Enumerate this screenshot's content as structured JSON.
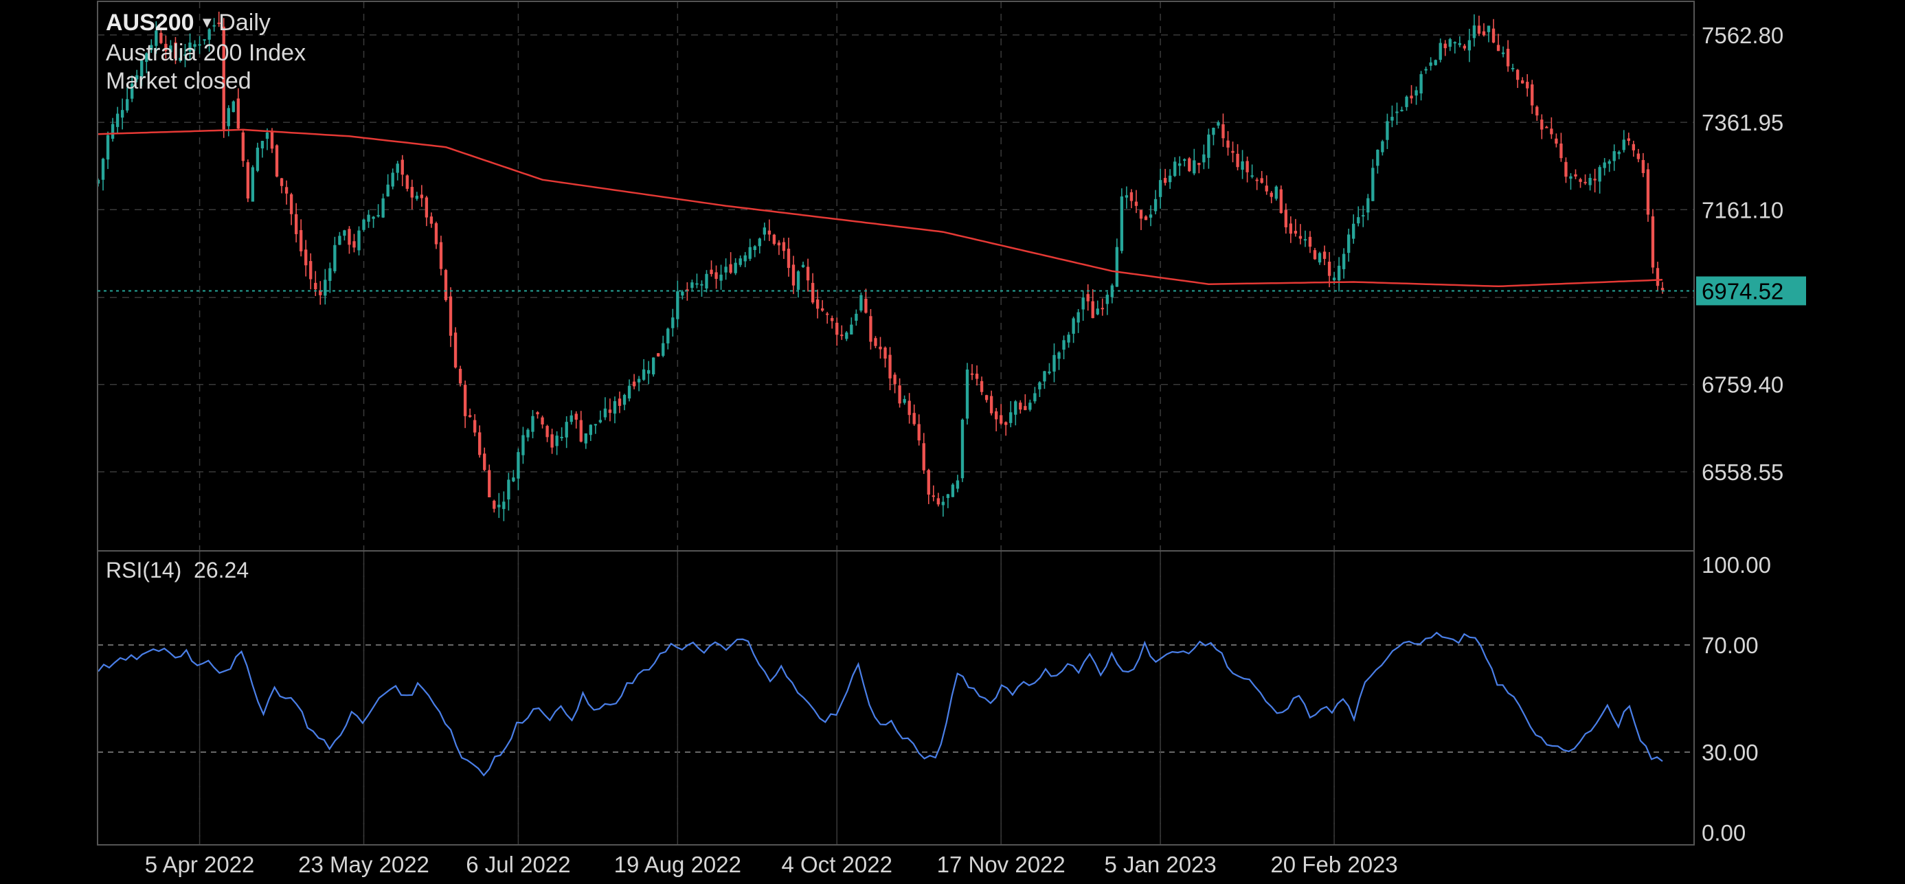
{
  "header": {
    "symbol": "AUS200",
    "interval": "Daily",
    "name": "Australia 200 Index",
    "status": "Market closed",
    "interval_caret_icon": "caret-down-icon"
  },
  "rsi_header": {
    "label": "RSI(14)",
    "value": "26.24"
  },
  "colors": {
    "background": "#000000",
    "bull": "#26a69a",
    "bear": "#ef5350",
    "ma": "#e53935",
    "rsi": "#4a7fe8",
    "grid": "#3a3a3a",
    "price_tag_bg": "#26a69a"
  },
  "chart_data": [
    {
      "type": "candlestick",
      "symbol": "AUS200",
      "interval": "Daily",
      "ylim": [
        6380,
        7640
      ],
      "y_ticks": [
        "7562.80",
        "7361.95",
        "7161.10",
        "6759.40",
        "6558.55"
      ],
      "last_price": "6974.52",
      "x_ticks": [
        "5 Apr 2022",
        "23 May 2022",
        "6 Jul 2022",
        "19 Aug 2022",
        "4 Oct 2022",
        "17 Nov 2022",
        "5 Jan 2023",
        "20 Feb 2023"
      ],
      "close_anchors": [
        [
          0,
          7230
        ],
        [
          2,
          7330
        ],
        [
          5,
          7400
        ],
        [
          8,
          7480
        ],
        [
          12,
          7570
        ],
        [
          16,
          7510
        ],
        [
          20,
          7540
        ],
        [
          22,
          7560
        ],
        [
          25,
          7600
        ],
        [
          26,
          7360
        ],
        [
          28,
          7420
        ],
        [
          31,
          7200
        ],
        [
          33,
          7300
        ],
        [
          35,
          7340
        ],
        [
          37,
          7250
        ],
        [
          39,
          7200
        ],
        [
          41,
          7100
        ],
        [
          44,
          7000
        ],
        [
          46,
          6960
        ],
        [
          48,
          7040
        ],
        [
          50,
          7110
        ],
        [
          53,
          7080
        ],
        [
          56,
          7150
        ],
        [
          58,
          7150
        ],
        [
          60,
          7230
        ],
        [
          62,
          7260
        ],
        [
          64,
          7200
        ],
        [
          66,
          7200
        ],
        [
          68,
          7150
        ],
        [
          70,
          7080
        ],
        [
          72,
          6950
        ],
        [
          74,
          6800
        ],
        [
          76,
          6700
        ],
        [
          78,
          6650
        ],
        [
          80,
          6560
        ],
        [
          82,
          6470
        ],
        [
          84,
          6500
        ],
        [
          86,
          6560
        ],
        [
          88,
          6640
        ],
        [
          90,
          6700
        ],
        [
          92,
          6680
        ],
        [
          94,
          6620
        ],
        [
          96,
          6640
        ],
        [
          98,
          6700
        ],
        [
          100,
          6640
        ],
        [
          103,
          6670
        ],
        [
          106,
          6700
        ],
        [
          108,
          6720
        ],
        [
          110,
          6760
        ],
        [
          113,
          6790
        ],
        [
          116,
          6830
        ],
        [
          120,
          6960
        ],
        [
          123,
          6980
        ],
        [
          126,
          7000
        ],
        [
          129,
          7010
        ],
        [
          132,
          7040
        ],
        [
          135,
          7080
        ],
        [
          138,
          7110
        ],
        [
          140,
          7090
        ],
        [
          142,
          7060
        ],
        [
          144,
          6990
        ],
        [
          146,
          7020
        ],
        [
          148,
          6960
        ],
        [
          150,
          6930
        ],
        [
          152,
          6900
        ],
        [
          154,
          6870
        ],
        [
          156,
          6900
        ],
        [
          158,
          6960
        ],
        [
          160,
          6860
        ],
        [
          162,
          6840
        ],
        [
          164,
          6780
        ],
        [
          166,
          6730
        ],
        [
          168,
          6700
        ],
        [
          170,
          6620
        ],
        [
          172,
          6500
        ],
        [
          174,
          6480
        ],
        [
          176,
          6500
        ],
        [
          178,
          6530
        ],
        [
          180,
          6800
        ],
        [
          182,
          6780
        ],
        [
          184,
          6720
        ],
        [
          186,
          6680
        ],
        [
          188,
          6660
        ],
        [
          190,
          6720
        ],
        [
          192,
          6700
        ],
        [
          194,
          6740
        ],
        [
          196,
          6780
        ],
        [
          198,
          6820
        ],
        [
          200,
          6850
        ],
        [
          202,
          6900
        ],
        [
          204,
          6960
        ],
        [
          206,
          6920
        ],
        [
          208,
          6950
        ],
        [
          210,
          7000
        ],
        [
          212,
          7180
        ],
        [
          214,
          7180
        ],
        [
          216,
          7130
        ],
        [
          218,
          7160
        ],
        [
          220,
          7220
        ],
        [
          222,
          7250
        ],
        [
          224,
          7270
        ],
        [
          226,
          7260
        ],
        [
          228,
          7270
        ],
        [
          230,
          7320
        ],
        [
          232,
          7350
        ],
        [
          234,
          7300
        ],
        [
          236,
          7270
        ],
        [
          238,
          7250
        ],
        [
          240,
          7230
        ],
        [
          242,
          7210
        ],
        [
          244,
          7200
        ],
        [
          246,
          7130
        ],
        [
          248,
          7100
        ],
        [
          250,
          7080
        ],
        [
          252,
          7060
        ],
        [
          254,
          7040
        ],
        [
          256,
          7000
        ],
        [
          258,
          7060
        ],
        [
          260,
          7120
        ],
        [
          262,
          7150
        ],
        [
          264,
          7250
        ],
        [
          266,
          7330
        ],
        [
          268,
          7370
        ],
        [
          270,
          7400
        ],
        [
          272,
          7430
        ],
        [
          274,
          7470
        ],
        [
          276,
          7510
        ],
        [
          278,
          7530
        ],
        [
          280,
          7550
        ],
        [
          282,
          7530
        ],
        [
          284,
          7560
        ],
        [
          286,
          7580
        ],
        [
          288,
          7570
        ],
        [
          290,
          7540
        ],
        [
          292,
          7500
        ],
        [
          294,
          7460
        ],
        [
          296,
          7430
        ],
        [
          298,
          7380
        ],
        [
          300,
          7340
        ],
        [
          302,
          7300
        ],
        [
          304,
          7250
        ],
        [
          306,
          7240
        ],
        [
          308,
          7220
        ],
        [
          310,
          7230
        ],
        [
          312,
          7270
        ],
        [
          314,
          7300
        ],
        [
          316,
          7310
        ],
        [
          318,
          7300
        ],
        [
          320,
          7250
        ],
        [
          322,
          7020
        ],
        [
          324,
          6975
        ]
      ],
      "ma_anchors": [
        [
          0,
          7335
        ],
        [
          30,
          7345
        ],
        [
          52,
          7330
        ],
        [
          72,
          7305
        ],
        [
          92,
          7230
        ],
        [
          130,
          7170
        ],
        [
          175,
          7110
        ],
        [
          210,
          7020
        ],
        [
          230,
          6990
        ],
        [
          260,
          6995
        ],
        [
          290,
          6985
        ],
        [
          324,
          7000
        ]
      ]
    },
    {
      "type": "line",
      "name": "RSI(14)",
      "ylim": [
        0,
        100
      ],
      "y_ticks": [
        "100.00",
        "70.00",
        "30.00",
        "0.00"
      ],
      "reference_lines": [
        70,
        30
      ],
      "last_value": 26.24,
      "anchors": [
        [
          0,
          61
        ],
        [
          4,
          64
        ],
        [
          8,
          66
        ],
        [
          12,
          69
        ],
        [
          14,
          65
        ],
        [
          16,
          68
        ],
        [
          18,
          62
        ],
        [
          20,
          65
        ],
        [
          22,
          60
        ],
        [
          24,
          62
        ],
        [
          26,
          67
        ],
        [
          28,
          55
        ],
        [
          30,
          45
        ],
        [
          32,
          54
        ],
        [
          34,
          50
        ],
        [
          36,
          49
        ],
        [
          38,
          40
        ],
        [
          40,
          35
        ],
        [
          42,
          32
        ],
        [
          44,
          36
        ],
        [
          46,
          46
        ],
        [
          48,
          40
        ],
        [
          50,
          47
        ],
        [
          52,
          52
        ],
        [
          54,
          55
        ],
        [
          56,
          50
        ],
        [
          58,
          55
        ],
        [
          60,
          52
        ],
        [
          62,
          45
        ],
        [
          64,
          38
        ],
        [
          66,
          28
        ],
        [
          68,
          26
        ],
        [
          70,
          22
        ],
        [
          72,
          28
        ],
        [
          74,
          31
        ],
        [
          76,
          40
        ],
        [
          78,
          44
        ],
        [
          80,
          47
        ],
        [
          82,
          43
        ],
        [
          84,
          46
        ],
        [
          86,
          43
        ],
        [
          88,
          51
        ],
        [
          90,
          45
        ],
        [
          92,
          48
        ],
        [
          94,
          47
        ],
        [
          96,
          55
        ],
        [
          98,
          58
        ],
        [
          100,
          61
        ],
        [
          102,
          67
        ],
        [
          104,
          70
        ],
        [
          106,
          68
        ],
        [
          108,
          70
        ],
        [
          110,
          68
        ],
        [
          112,
          70
        ],
        [
          114,
          68
        ],
        [
          116,
          72
        ],
        [
          118,
          71
        ],
        [
          120,
          62
        ],
        [
          122,
          57
        ],
        [
          124,
          63
        ],
        [
          126,
          55
        ],
        [
          128,
          50
        ],
        [
          130,
          45
        ],
        [
          132,
          42
        ],
        [
          134,
          45
        ],
        [
          136,
          52
        ],
        [
          138,
          64
        ],
        [
          140,
          47
        ],
        [
          142,
          40
        ],
        [
          144,
          41
        ],
        [
          146,
          36
        ],
        [
          148,
          33
        ],
        [
          150,
          27
        ],
        [
          152,
          28
        ],
        [
          154,
          40
        ],
        [
          156,
          60
        ],
        [
          158,
          55
        ],
        [
          160,
          52
        ],
        [
          162,
          48
        ],
        [
          164,
          55
        ],
        [
          166,
          52
        ],
        [
          168,
          57
        ],
        [
          170,
          55
        ],
        [
          172,
          60
        ],
        [
          174,
          59
        ],
        [
          176,
          63
        ],
        [
          178,
          60
        ],
        [
          180,
          67
        ],
        [
          182,
          58
        ],
        [
          184,
          66
        ],
        [
          186,
          60
        ],
        [
          188,
          62
        ],
        [
          190,
          70
        ],
        [
          192,
          64
        ],
        [
          194,
          66
        ],
        [
          196,
          67
        ],
        [
          198,
          68
        ],
        [
          200,
          70
        ],
        [
          202,
          71
        ],
        [
          204,
          66
        ],
        [
          206,
          60
        ],
        [
          208,
          57
        ],
        [
          210,
          55
        ],
        [
          212,
          48
        ],
        [
          214,
          44
        ],
        [
          216,
          46
        ],
        [
          218,
          52
        ],
        [
          220,
          42
        ],
        [
          222,
          47
        ],
        [
          224,
          45
        ],
        [
          226,
          50
        ],
        [
          228,
          43
        ],
        [
          230,
          55
        ],
        [
          232,
          60
        ],
        [
          234,
          66
        ],
        [
          236,
          70
        ],
        [
          238,
          72
        ],
        [
          240,
          71
        ],
        [
          242,
          73
        ],
        [
          244,
          74
        ],
        [
          246,
          71
        ],
        [
          248,
          73
        ],
        [
          250,
          72
        ],
        [
          252,
          65
        ],
        [
          254,
          56
        ],
        [
          256,
          52
        ],
        [
          258,
          48
        ],
        [
          260,
          40
        ],
        [
          262,
          35
        ],
        [
          264,
          32
        ],
        [
          266,
          30
        ],
        [
          268,
          31
        ],
        [
          270,
          36
        ],
        [
          272,
          42
        ],
        [
          274,
          47
        ],
        [
          276,
          40
        ],
        [
          278,
          48
        ],
        [
          280,
          35
        ],
        [
          282,
          28
        ],
        [
          284,
          26.24
        ]
      ]
    }
  ]
}
